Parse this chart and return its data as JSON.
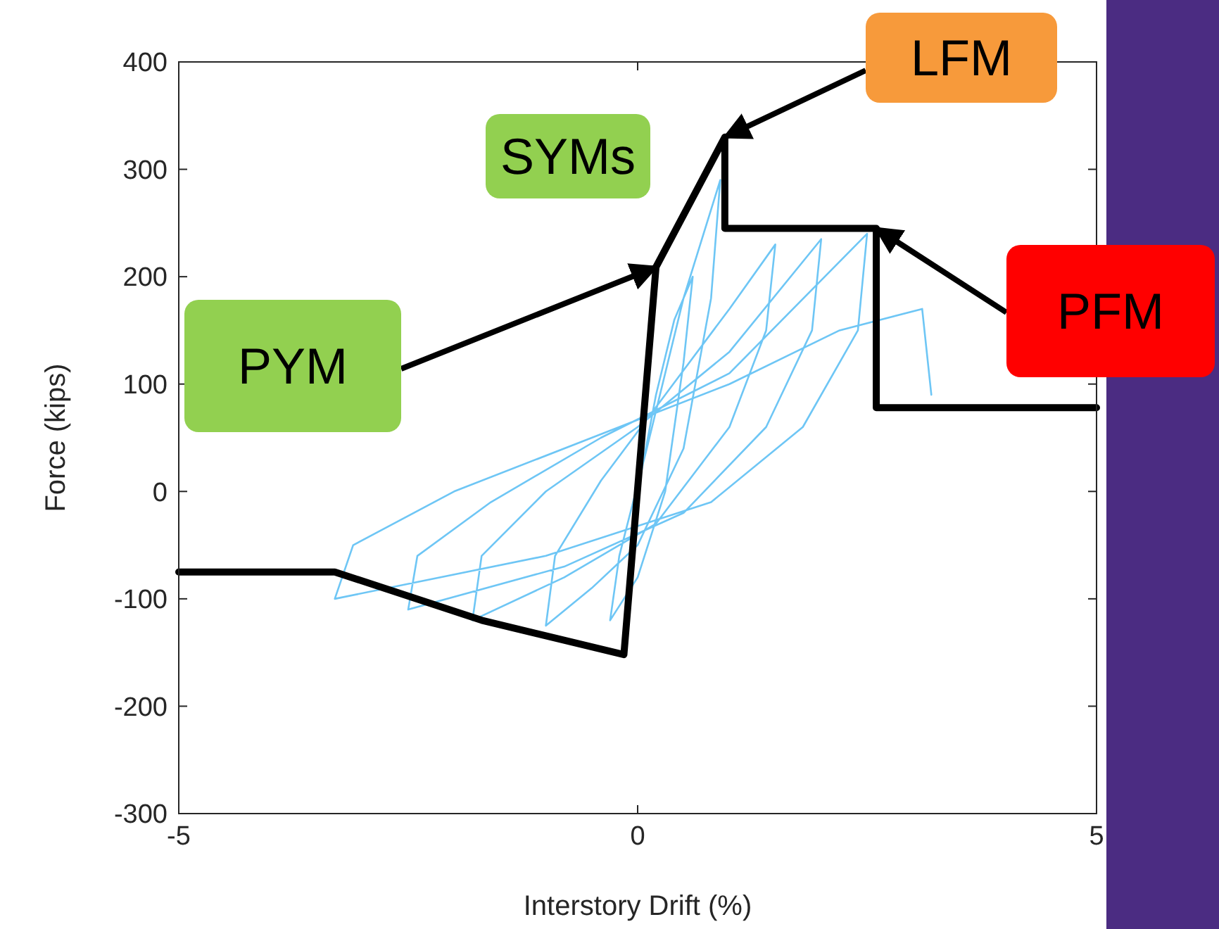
{
  "chart_data": {
    "type": "line",
    "xlabel": "Interstory Drift (%)",
    "ylabel": "Force (kips)",
    "xlim": [
      -5,
      5
    ],
    "xticks": [
      -5,
      0,
      5
    ],
    "ylim": [
      -300,
      400
    ],
    "yticks": [
      -300,
      -200,
      -100,
      0,
      100,
      200,
      300,
      400
    ],
    "grid": false,
    "marker": "none",
    "line_style": "solid",
    "series": [
      {
        "color": "#6ec6f5",
        "x": [
          0,
          0.2,
          0.4,
          0.6,
          0.5,
          0.3,
          0.0,
          -0.3,
          -0.2,
          0.1,
          0.5,
          0.9,
          0.8,
          0.5,
          0.0,
          -0.5,
          -1.0,
          -0.9,
          -0.4,
          0.3,
          1.0,
          1.5,
          1.4,
          1.0,
          0.2,
          -0.8,
          -1.8,
          -1.7,
          -1.0,
          0.0,
          1.0,
          2.0,
          1.9,
          1.4,
          0.5,
          -0.8,
          -2.5,
          -2.4,
          -1.6,
          -0.4,
          1.0,
          2.5,
          2.4,
          1.8,
          0.8,
          -1.0,
          -3.3,
          -3.1,
          -2.0,
          -0.5,
          1.0,
          2.2,
          3.1,
          3.2
        ],
        "values": [
          0,
          90,
          160,
          200,
          120,
          0,
          -80,
          -120,
          -60,
          40,
          180,
          290,
          180,
          40,
          -50,
          -90,
          -125,
          -60,
          10,
          90,
          170,
          230,
          150,
          60,
          -30,
          -80,
          -120,
          -60,
          0,
          60,
          130,
          235,
          150,
          60,
          -20,
          -70,
          -110,
          -60,
          -10,
          50,
          110,
          240,
          150,
          60,
          -10,
          -60,
          -100,
          -50,
          0,
          50,
          100,
          150,
          170,
          90
        ]
      },
      {
        "color": "#000000",
        "x": [
          -5,
          -3.3,
          -1.7,
          -0.15,
          0.2,
          0.95,
          0.95,
          2.6,
          2.6,
          5
        ],
        "values": [
          -75,
          -75,
          -120,
          -152,
          209,
          330,
          245,
          245,
          78,
          78
        ]
      }
    ],
    "annotations": [
      {
        "text": "PYM",
        "x": 0.2,
        "y": 209
      },
      "SYMs",
      {
        "text": "LFM",
        "x": 0.95,
        "y": 330
      },
      {
        "text": "PFM",
        "x": 2.6,
        "y": 245
      }
    ]
  }
}
